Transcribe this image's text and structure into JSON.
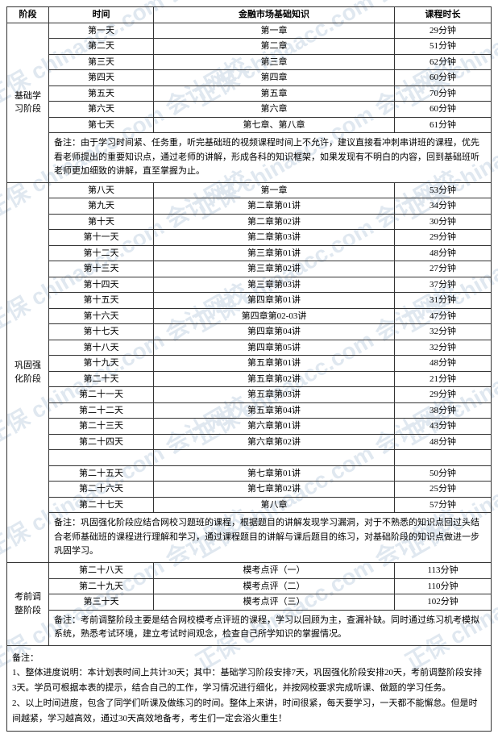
{
  "headers": {
    "stage": "阶段",
    "time": "时间",
    "knowledge": "金融市场基础知识",
    "duration": "课程时长"
  },
  "stages": {
    "s1": "基础学习阶段",
    "s2": "巩固强化阶段",
    "s3": "考前调整阶段"
  },
  "stage1_rows": [
    {
      "day": "第一天",
      "content": "第一章",
      "dur": "29分钟"
    },
    {
      "day": "第二天",
      "content": "第二章",
      "dur": "51分钟"
    },
    {
      "day": "第三天",
      "content": "第三章",
      "dur": "62分钟"
    },
    {
      "day": "第四天",
      "content": "第四章",
      "dur": "60分钟"
    },
    {
      "day": "第五天",
      "content": "第五章",
      "dur": "70分钟"
    },
    {
      "day": "第六天",
      "content": "第六章",
      "dur": "60分钟"
    },
    {
      "day": "第七天",
      "content": "第七章、第八章",
      "dur": "61分钟"
    }
  ],
  "stage1_note": "备注：由于学习时间紧、任务重，听完基础班的视频课程时间上不允许，建议直接看冲刺串讲班的课程，优先看老师提出的重要知识点，通过老师的讲解，形成各科的知识框架，如果发现有不明白的内容，回到基础班听老师更加细致的讲解，直至掌握为止。",
  "stage2a_rows": [
    {
      "day": "第八天",
      "content": "第一章",
      "dur": "53分钟"
    },
    {
      "day": "第九天",
      "content": "第二章第01讲",
      "dur": "34分钟"
    },
    {
      "day": "第十天",
      "content": "第二章第02讲",
      "dur": "30分钟"
    },
    {
      "day": "第十一天",
      "content": "第二章第03讲",
      "dur": "29分钟"
    },
    {
      "day": "第十二天",
      "content": "第三章第01讲",
      "dur": "48分钟"
    },
    {
      "day": "第十三天",
      "content": "第三章第02讲",
      "dur": "27分钟"
    },
    {
      "day": "第十四天",
      "content": "第三章第03讲",
      "dur": "37分钟"
    },
    {
      "day": "第十五天",
      "content": "第四章第01讲",
      "dur": "31分钟"
    },
    {
      "day": "第十六天",
      "content": "第四章第02-03讲",
      "dur": "47分钟"
    },
    {
      "day": "第十七天",
      "content": "第四章第04讲",
      "dur": "32分钟"
    },
    {
      "day": "第十八天",
      "content": "第四章第05讲",
      "dur": "32分钟"
    },
    {
      "day": "第十九天",
      "content": "第五章第01讲",
      "dur": "48分钟"
    },
    {
      "day": "第二十天",
      "content": "第五章第02讲",
      "dur": "21分钟"
    },
    {
      "day": "第二十一天",
      "content": "第五章第03讲",
      "dur": "29分钟"
    },
    {
      "day": "第二十二天",
      "content": "第五章第04讲",
      "dur": "38分钟"
    },
    {
      "day": "第二十三天",
      "content": "第六章第01讲",
      "dur": "43分钟"
    },
    {
      "day": "第二十四天",
      "content": "第六章第02讲",
      "dur": "48分钟"
    }
  ],
  "stage2b_rows": [
    {
      "day": "第二十五天",
      "content": "第七章第01讲",
      "dur": "50分钟"
    },
    {
      "day": "第二十六天",
      "content": "第七章第02讲",
      "dur": "25分钟"
    },
    {
      "day": "第二十七天",
      "content": "第八章",
      "dur": "57分钟"
    }
  ],
  "stage2_note": "备注：巩固强化阶段应结合网校习题班的课程，根据题目的讲解发现学习漏洞，对于不熟悉的知识点回过头结合老师基础班的课程进行理解和学习，通过课程题目的讲解与课后题目的练习，对基础阶段的知识点做进一步巩固学习。",
  "stage3_rows": [
    {
      "day": "第二十八天",
      "content": "模考点评（一）",
      "dur": "113分钟"
    },
    {
      "day": "第二十九天",
      "content": "模考点评（二）",
      "dur": "110分钟"
    },
    {
      "day": "第三十天",
      "content": "模考点评（三）",
      "dur": "102分钟"
    }
  ],
  "stage3_note": "备注：考前调整阶段主要是结合网校模考点评班的课程，学习以回顾为主，查漏补缺。同时通过练习机考模拟系统，熟悉考试环境，建立考试时间观念，检查自己所学知识的掌握情况。",
  "footer": "备注：\n1、整体进度说明：本计划表时间上共计30天；其中：基础学习阶段安排7天，巩固强化阶段安排20天，考前调整阶段安排3天。学员可根据本表的提示，结合自己的工作，学习情况进行细化，并按网校要求完成听课、做题的学习任务。\n2、以上时间进度，包含了同学们听课及做练习的时间。整体上来讲，时间很紧，每天要学习，一天都不能懈怠。但是时间越紧，学习越高效，通过30天高效地备考，考生们一定会浴火重生！",
  "watermark": "正保 chinaacc.com 会计网校"
}
